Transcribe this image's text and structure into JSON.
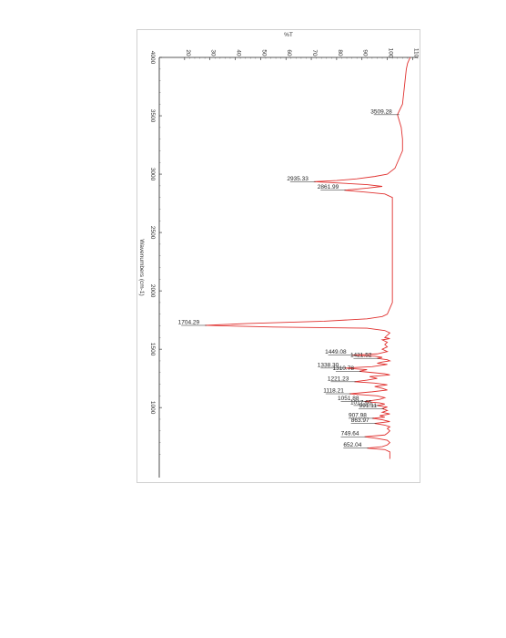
{
  "chart_data": {
    "type": "line",
    "title": "",
    "xlabel": "Wavenumbers (cm-1)",
    "ylabel": "%T",
    "x_axis": {
      "lim": [
        4000,
        400
      ],
      "ticks": [
        4000,
        3500,
        3000,
        2500,
        2000,
        1500,
        1000
      ],
      "tick_labels": [
        "4000",
        "3500",
        "3000",
        "2500",
        "2000",
        "1500",
        "1000"
      ]
    },
    "y_axis": {
      "lim": [
        10,
        112
      ],
      "ticks": [
        20,
        30,
        40,
        50,
        60,
        70,
        80,
        90,
        100,
        110
      ],
      "tick_labels": [
        "20",
        "30",
        "40",
        "50",
        "60",
        "70",
        "80",
        "90",
        "100",
        "110"
      ]
    },
    "grid": false,
    "orientation": "rotated-90",
    "line_color": "#e0312f",
    "series": [
      {
        "x": [
          4000,
          3950,
          3900,
          3800,
          3700,
          3600,
          3509.28,
          3400,
          3300,
          3200,
          3100,
          3050,
          3000,
          2980,
          2960,
          2945,
          2935.33,
          2925,
          2910,
          2895,
          2880,
          2861.99,
          2845,
          2830,
          2800,
          2700,
          2600,
          2500,
          2400,
          2300,
          2200,
          2100,
          2000,
          1900,
          1850,
          1800,
          1780,
          1760,
          1740,
          1720,
          1704.29,
          1690,
          1680,
          1660,
          1640,
          1620,
          1600,
          1590,
          1580,
          1560,
          1540,
          1520,
          1500,
          1480,
          1460,
          1449.08,
          1440,
          1430,
          1421.52,
          1410,
          1400,
          1390,
          1380,
          1370,
          1360,
          1350,
          1338.3,
          1325,
          1310.78,
          1300,
          1290,
          1280,
          1265,
          1250,
          1235,
          1221.23,
          1210,
          1195,
          1180,
          1165,
          1150,
          1135,
          1118.21,
          1100,
          1085,
          1070,
          1051.88,
          1040,
          1030,
          1017.65,
          1005,
          991.11,
          975,
          960,
          945,
          930,
          918,
          907.98,
          895,
          880,
          863.97,
          850,
          835,
          820,
          800,
          780,
          765,
          749.64,
          735,
          720,
          700,
          680,
          665,
          652.04,
          640,
          620,
          600,
          580,
          560
        ],
        "y": [
          109,
          108,
          107.5,
          107,
          106.5,
          106,
          104,
          105.5,
          106,
          106,
          104,
          103,
          100,
          95,
          88,
          80,
          71,
          80,
          92,
          98,
          92,
          83,
          92,
          99,
          102,
          102,
          102,
          102,
          102,
          102,
          102,
          102,
          102,
          102,
          101,
          100,
          98,
          92,
          75,
          45,
          28,
          55,
          92,
          99,
          101,
          100,
          99,
          101,
          98,
          100,
          99,
          100,
          98,
          100,
          96,
          86,
          95,
          98,
          96,
          100,
          101,
          98,
          96,
          100,
          97,
          94,
          83,
          92,
          89,
          94,
          99,
          101,
          93,
          96,
          92,
          87,
          95,
          100,
          95,
          98,
          100,
          94,
          85,
          96,
          99,
          97,
          91,
          97,
          99,
          96,
          100,
          98,
          100,
          98,
          101,
          97,
          99,
          94,
          98,
          101,
          95,
          99,
          101,
          100,
          101,
          100,
          99,
          91,
          96,
          100,
          101,
          100,
          98,
          92,
          99,
          101,
          101,
          101,
          101
        ]
      }
    ],
    "peaks": [
      {
        "x": 3509.28,
        "y": 104,
        "label": "3509.28"
      },
      {
        "x": 2935.33,
        "y": 71,
        "label": "2935.33"
      },
      {
        "x": 2861.99,
        "y": 83,
        "label": "2861.99"
      },
      {
        "x": 1704.29,
        "y": 28,
        "label": "1704.29"
      },
      {
        "x": 1449.08,
        "y": 86,
        "label": "1449.08"
      },
      {
        "x": 1421.52,
        "y": 96,
        "label": "1421.52"
      },
      {
        "x": 1338.3,
        "y": 83,
        "label": "1338.30"
      },
      {
        "x": 1310.78,
        "y": 89,
        "label": "1310.78"
      },
      {
        "x": 1221.23,
        "y": 87,
        "label": "1221.23"
      },
      {
        "x": 1118.21,
        "y": 85,
        "label": "1118.21"
      },
      {
        "x": 1051.88,
        "y": 91,
        "label": "1051.88"
      },
      {
        "x": 1017.65,
        "y": 96,
        "label": "1017.65"
      },
      {
        "x": 991.11,
        "y": 98,
        "label": "991.11"
      },
      {
        "x": 907.98,
        "y": 94,
        "label": "907.98"
      },
      {
        "x": 863.97,
        "y": 95,
        "label": "863.97"
      },
      {
        "x": 749.64,
        "y": 91,
        "label": "749.64"
      },
      {
        "x": 652.04,
        "y": 92,
        "label": "652.04"
      }
    ]
  }
}
